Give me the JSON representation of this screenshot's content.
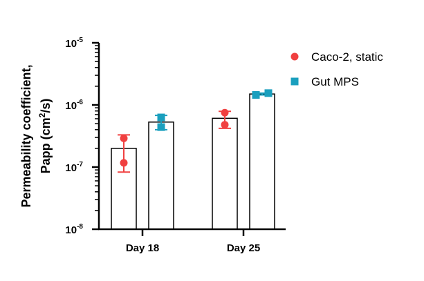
{
  "chart_data": {
    "type": "bar",
    "yscale": "log",
    "ylim": [
      1e-08,
      1e-05
    ],
    "y_ticks": [
      {
        "base": "10",
        "exp": "-5",
        "value": 1e-05
      },
      {
        "base": "10",
        "exp": "-6",
        "value": 1e-06
      },
      {
        "base": "10",
        "exp": "-7",
        "value": 1e-07
      },
      {
        "base": "10",
        "exp": "-8",
        "value": 1e-08
      }
    ],
    "ylabel_line1": "Permeability coefficient,",
    "ylabel_line2_prefix": "Papp (cm",
    "ylabel_line2_sup": "2",
    "ylabel_line2_suffix": "/s)",
    "categories": [
      "Day 18",
      "Day 25"
    ],
    "legend_position": "top-right",
    "series": [
      {
        "name": "Caco-2, static",
        "marker": "circle",
        "color": "#f04040",
        "values": [
          2e-07,
          6.1e-07
        ],
        "error_low": [
          8.3e-08,
          4.2e-07
        ],
        "error_high": [
          3.3e-07,
          7.9e-07
        ],
        "points": [
          [
            2.9e-07,
            1.17e-07
          ],
          [
            7.5e-07,
            4.8e-07
          ]
        ]
      },
      {
        "name": "Gut MPS",
        "marker": "square",
        "color": "#1a9fbe",
        "values": [
          5.3e-07,
          1.5e-06
        ],
        "error_low": [
          4e-07,
          1.45e-06
        ],
        "error_high": [
          6.8e-07,
          1.55e-06
        ],
        "points": [
          [
            6.3e-07,
            4.4e-07
          ],
          [
            1.45e-06,
            1.55e-06
          ]
        ]
      }
    ]
  }
}
